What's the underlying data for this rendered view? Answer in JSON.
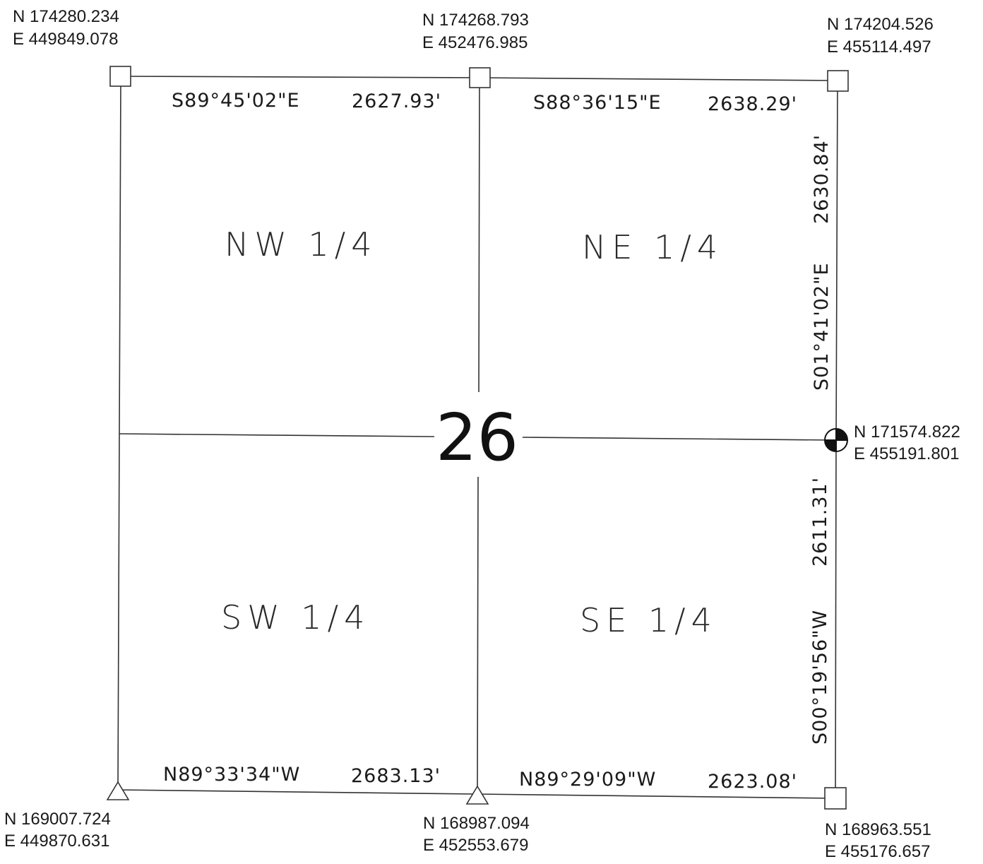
{
  "section_number": "26",
  "quarters": {
    "nw": "NW 1/4",
    "ne": "NE 1/4",
    "sw": "SW 1/4",
    "se": "SE 1/4"
  },
  "corners": {
    "nw": {
      "n": "N 174280.234",
      "e": "E 449849.078"
    },
    "n_quarter": {
      "n": "N 174268.793",
      "e": "E 452476.985"
    },
    "ne": {
      "n": "N 174204.526",
      "e": "E 455114.497"
    },
    "e_quarter": {
      "n": "N 171574.822",
      "e": "E 455191.801"
    },
    "sw": {
      "n": "N 169007.724",
      "e": "E 449870.631"
    },
    "s_quarter": {
      "n": "N 168987.094",
      "e": "E 452553.679"
    },
    "se": {
      "n": "N 168963.551",
      "e": "E 455176.657"
    }
  },
  "boundary_calls": {
    "north_west_half": {
      "bearing": "S89°45'02\"E",
      "distance": "2627.93'"
    },
    "north_east_half": {
      "bearing": "S88°36'15\"E",
      "distance": "2638.29'"
    },
    "east_north_half": {
      "bearing": "S01°41'02\"E",
      "distance": "2630.84'"
    },
    "east_south_half": {
      "bearing": "S00°19'56\"W",
      "distance": "2611.31'"
    },
    "south_west_half": {
      "bearing": "N89°33'34\"W",
      "distance": "2683.13'"
    },
    "south_east_half": {
      "bearing": "N89°29'09\"W",
      "distance": "2623.08'"
    }
  },
  "monument_symbols": {
    "nw": "square-monument-icon",
    "n_quarter": "square-monument-icon",
    "ne": "square-monument-icon",
    "e_quarter": "control-point-icon",
    "sw": "triangle-monument-icon",
    "s_quarter": "triangle-monument-icon",
    "se": "square-monument-icon"
  }
}
